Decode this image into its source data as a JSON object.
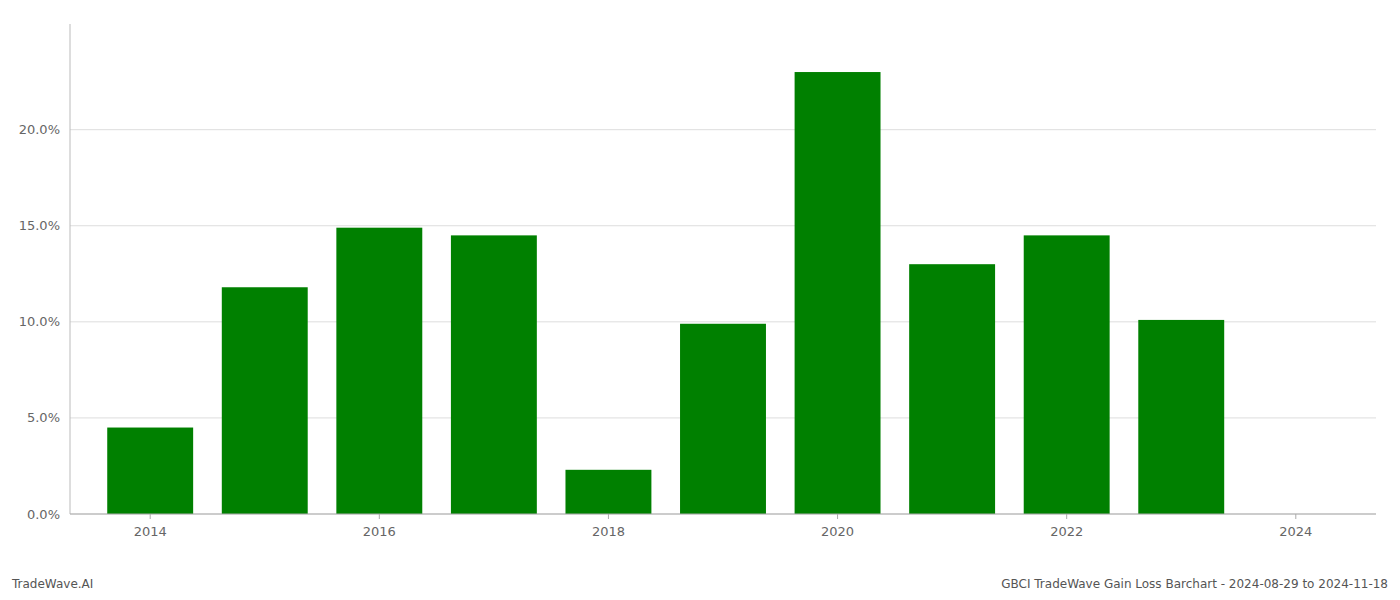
{
  "chart_data": {
    "type": "bar",
    "x": [
      2014,
      2015,
      2016,
      2017,
      2018,
      2019,
      2020,
      2021,
      2022,
      2023
    ],
    "values": [
      0.045,
      0.118,
      0.149,
      0.145,
      0.023,
      0.099,
      0.23,
      0.13,
      0.145,
      0.101
    ],
    "color": "#008000",
    "xlim": [
      2013.3,
      2024.7
    ],
    "xticks": [
      2014,
      2016,
      2018,
      2020,
      2022,
      2024
    ],
    "ylim": [
      0,
      0.255
    ],
    "yticks": [
      {
        "value": 0.0,
        "label": "0.0%"
      },
      {
        "value": 0.05,
        "label": "5.0%"
      },
      {
        "value": 0.1,
        "label": "10.0%"
      },
      {
        "value": 0.15,
        "label": "15.0%"
      },
      {
        "value": 0.2,
        "label": "20.0%"
      }
    ],
    "grid": true,
    "annotations": [
      "TradeWave.AI",
      "GBCI TradeWave Gain Loss Barchart - 2024-08-29 to 2024-11-18"
    ]
  }
}
